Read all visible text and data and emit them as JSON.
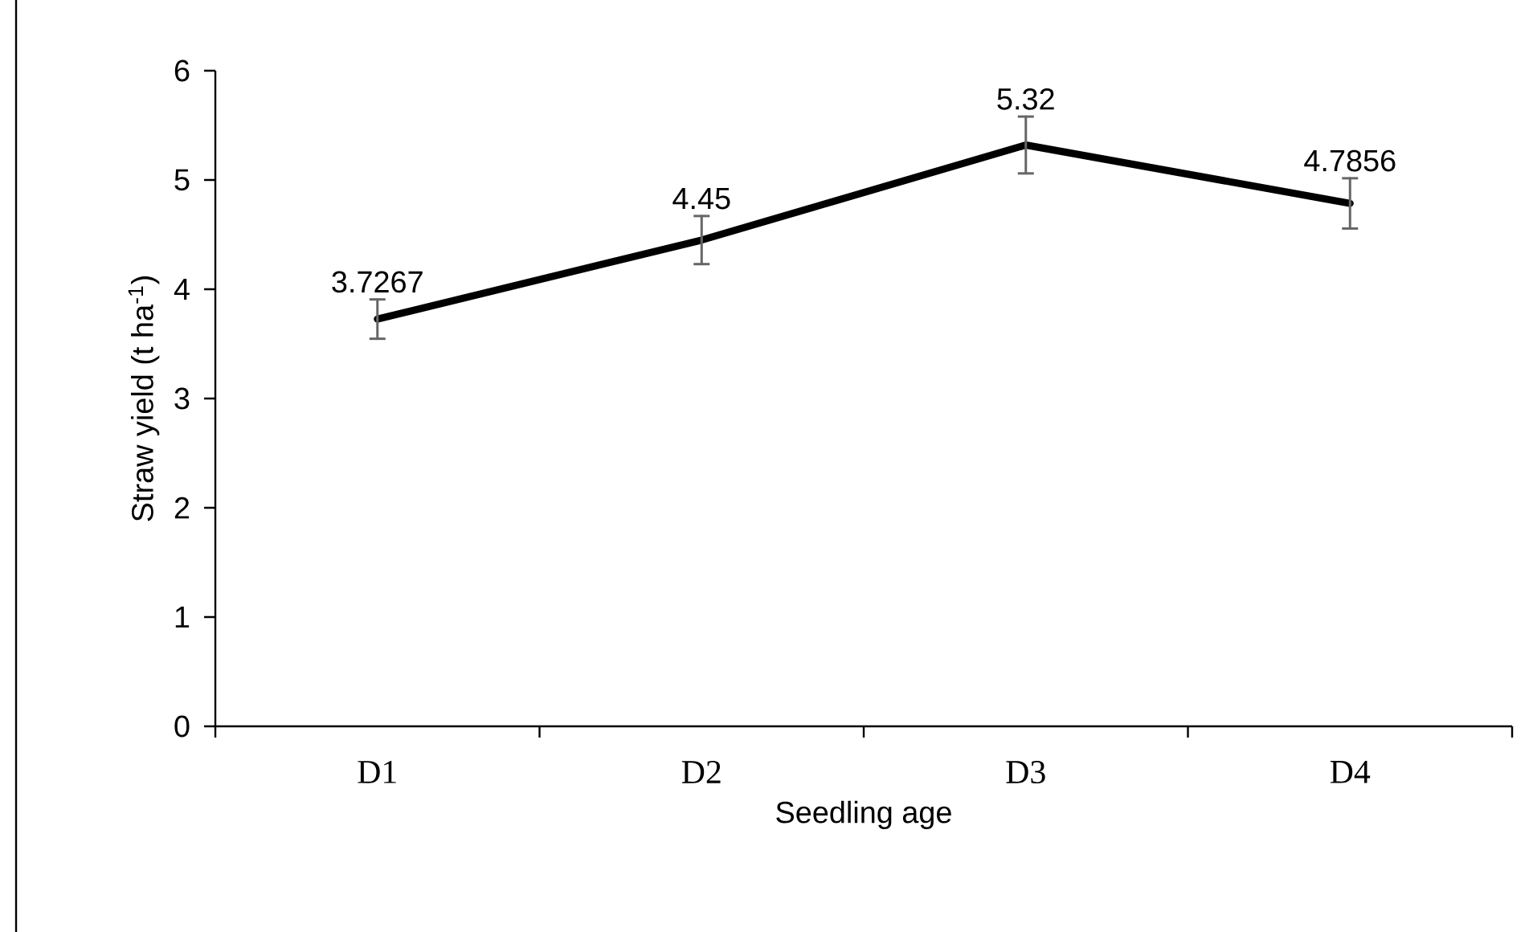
{
  "chart_data": {
    "type": "line",
    "xlabel": "Seedling age",
    "ylabel": "Straw yield (t ha$^{-1}$)",
    "categories": [
      "D1",
      "D2",
      "D3",
      "D4"
    ],
    "values": [
      3.7267,
      4.45,
      5.32,
      4.7856
    ],
    "errors": [
      0.18,
      0.22,
      0.26,
      0.23
    ],
    "color": "#000000",
    "data_labels": true,
    "ylim": [
      0,
      6
    ],
    "yticks": [
      0,
      1,
      2,
      3,
      4,
      5,
      6
    ],
    "grid": false,
    "line_style": "solid"
  }
}
